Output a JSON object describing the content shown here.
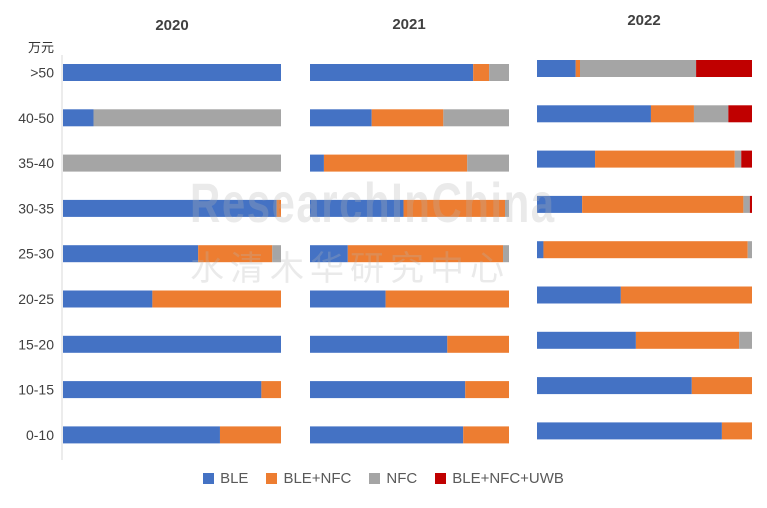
{
  "y_unit": "万元",
  "watermark": {
    "en": "ResearchInChina",
    "cn": "水清木华研究中心"
  },
  "colors": {
    "BLE": "#4472C4",
    "BLE+NFC": "#ED7D31",
    "NFC": "#A5A5A5",
    "BLE+NFC+UWB": "#C00000"
  },
  "chart_data": {
    "type": "bar",
    "orientation": "horizontal",
    "stacked": "percent",
    "categories": [
      ">50",
      "40-50",
      "35-40",
      "30-35",
      "25-30",
      "20-25",
      "15-20",
      "10-15",
      "0-10"
    ],
    "series_names": [
      "BLE",
      "BLE+NFC",
      "NFC",
      "BLE+NFC+UWB"
    ],
    "panels": [
      {
        "title": "2020",
        "values": {
          "BLE": [
            100,
            14,
            0,
            98,
            62,
            41,
            100,
            91,
            72
          ],
          "BLE+NFC": [
            0,
            0,
            0,
            2,
            34,
            59,
            0,
            9,
            28
          ],
          "NFC": [
            0,
            86,
            100,
            0,
            4,
            0,
            0,
            0,
            0
          ],
          "BLE+NFC+UWB": [
            0,
            0,
            0,
            0,
            0,
            0,
            0,
            0,
            0
          ]
        }
      },
      {
        "title": "2021",
        "values": {
          "BLE": [
            82,
            31,
            7,
            47,
            19,
            38,
            69,
            78,
            77
          ],
          "BLE+NFC": [
            8,
            36,
            72,
            51,
            78,
            62,
            31,
            22,
            23
          ],
          "NFC": [
            10,
            33,
            21,
            2,
            3,
            0,
            0,
            0,
            0
          ],
          "BLE+NFC+UWB": [
            0,
            0,
            0,
            0,
            0,
            0,
            0,
            0,
            0
          ]
        }
      },
      {
        "title": "2022",
        "values": {
          "BLE": [
            18,
            53,
            27,
            21,
            3,
            39,
            46,
            72,
            86
          ],
          "BLE+NFC": [
            2,
            20,
            65,
            75,
            95,
            61,
            48,
            28,
            14
          ],
          "NFC": [
            54,
            16,
            3,
            3,
            2,
            0,
            6,
            0,
            0
          ],
          "BLE+NFC+UWB": [
            26,
            11,
            5,
            1,
            0,
            0,
            0,
            0,
            0
          ]
        }
      }
    ],
    "legend_position": "bottom",
    "grid": false
  }
}
